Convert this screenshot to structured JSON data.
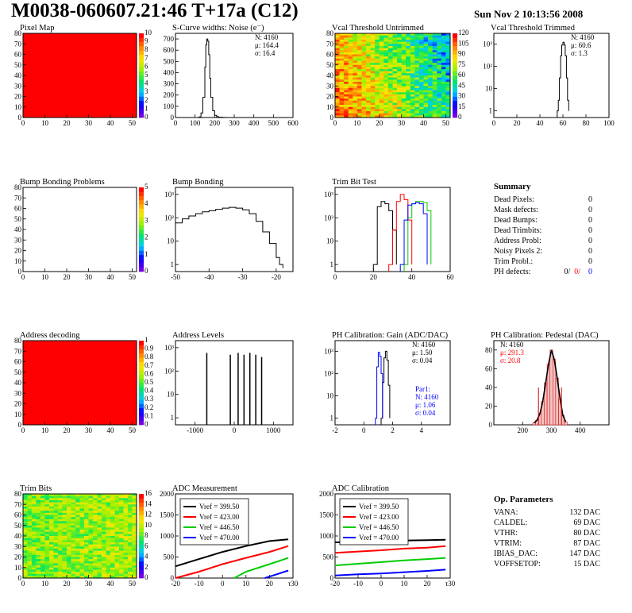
{
  "header": {
    "title": "M0038-060607.21:46 T+17a (C12)",
    "date": "Sun Nov  2 10:13:56 2008"
  },
  "colors": {
    "red_map": "#ff0000",
    "hist_line": "#000000",
    "trim_red": "#ff0000",
    "trim_green": "#00cc00",
    "trim_blue": "#0000ff"
  },
  "chart_data": [
    {
      "id": "pixel-map",
      "type": "heatmap",
      "title": "Pixel Map",
      "xlim": [
        0,
        52
      ],
      "ylim": [
        0,
        80
      ],
      "xticks": [
        0,
        10,
        20,
        30,
        40,
        50
      ],
      "yticks": [
        0,
        10,
        20,
        30,
        40,
        50,
        60,
        70,
        80
      ],
      "fill": "uniform",
      "value": 10,
      "zlim": [
        0,
        10
      ],
      "zticks": [
        0,
        1,
        2,
        3,
        4,
        5,
        6,
        7,
        8,
        9,
        10
      ]
    },
    {
      "id": "scurve-noise",
      "type": "line",
      "title": "S-Curve widths: Noise (e⁻)",
      "xlim": [
        0,
        600
      ],
      "ylim": [
        0,
        750
      ],
      "xticks": [
        0,
        100,
        200,
        300,
        400,
        500,
        600
      ],
      "yticks": [
        0,
        100,
        200,
        300,
        400,
        500,
        600,
        700
      ],
      "x": [
        100,
        120,
        130,
        140,
        150,
        155,
        160,
        165,
        170,
        175,
        180,
        190,
        200,
        210,
        220,
        240,
        260
      ],
      "y": [
        0,
        5,
        40,
        180,
        450,
        650,
        700,
        680,
        560,
        350,
        180,
        60,
        20,
        8,
        3,
        1,
        0
      ],
      "stats": {
        "N": "N: 4160",
        "mean": "μ: 164.4",
        "sigma": "σ: 16.4"
      }
    },
    {
      "id": "vcal-untrimmed",
      "type": "heatmap",
      "title": "Vcal Threshold Untrimmed",
      "xlim": [
        0,
        52
      ],
      "ylim": [
        0,
        80
      ],
      "xticks": [
        0,
        10,
        20,
        30,
        40,
        50
      ],
      "yticks": [
        0,
        10,
        20,
        30,
        40,
        50,
        60,
        70,
        80
      ],
      "fill": "gradient",
      "zticks": [
        0,
        15,
        30,
        45,
        60,
        75,
        90,
        105,
        120
      ]
    },
    {
      "id": "vcal-trimmed",
      "type": "line",
      "title": "Vcal Threshold Trimmed",
      "log_y": true,
      "xlim": [
        0,
        100
      ],
      "ylim": [
        0.5,
        3000
      ],
      "xticks": [
        0,
        20,
        40,
        60,
        80,
        100
      ],
      "ytick_labels": [
        "1",
        "10",
        "10²",
        "10³"
      ],
      "x": [
        55,
        56,
        57,
        58,
        59,
        60,
        61,
        62,
        63,
        64,
        65
      ],
      "y": [
        1,
        3,
        30,
        300,
        900,
        1200,
        900,
        300,
        30,
        3,
        1
      ],
      "stats": {
        "N": "N: 4160",
        "mean": "μ: 60.6",
        "sigma": "σ:  1.3"
      }
    },
    {
      "id": "bump-problems",
      "type": "heatmap",
      "title": "Bump Bonding Problems",
      "xlim": [
        0,
        52
      ],
      "ylim": [
        0,
        80
      ],
      "xticks": [
        0,
        10,
        20,
        30,
        40,
        50
      ],
      "yticks": [
        0,
        10,
        20,
        30,
        40,
        50,
        60,
        70,
        80
      ],
      "fill": "empty",
      "zticks": [
        0,
        1,
        2,
        3,
        4,
        5
      ]
    },
    {
      "id": "bump-bonding",
      "type": "line",
      "title": "Bump Bonding",
      "log_y": true,
      "xlim": [
        -50,
        -15
      ],
      "ylim": [
        0.5,
        2000
      ],
      "xticks": [
        -50,
        -40,
        -30,
        -20
      ],
      "ytick_labels": [
        "1",
        "10",
        "10²",
        "10³"
      ],
      "x": [
        -50,
        -48,
        -46,
        -44,
        -42,
        -40,
        -38,
        -36,
        -34,
        -32,
        -30,
        -28,
        -26,
        -24,
        -22,
        -20,
        -19,
        -18
      ],
      "y": [
        60,
        90,
        120,
        150,
        180,
        200,
        230,
        260,
        280,
        260,
        220,
        150,
        70,
        25,
        8,
        2,
        1,
        0.7
      ],
      "stats": {}
    },
    {
      "id": "trim-bit-test",
      "type": "line",
      "title": "Trim Bit Test",
      "log_y": true,
      "xlim": [
        0,
        60
      ],
      "ylim": [
        0.5,
        2000
      ],
      "xticks": [
        0,
        20,
        40,
        60
      ],
      "ytick_labels": [
        "1",
        "10",
        "10²",
        "10³"
      ],
      "series": [
        {
          "color": "#000000",
          "x": [
            20,
            22,
            24,
            26,
            28,
            30,
            32
          ],
          "y": [
            1,
            300,
            500,
            400,
            200,
            30,
            1
          ]
        },
        {
          "color": "#ff0000",
          "x": [
            28,
            30,
            32,
            34,
            36,
            38,
            40
          ],
          "y": [
            1,
            30,
            500,
            1000,
            600,
            80,
            1
          ]
        },
        {
          "color": "#00cc00",
          "x": [
            36,
            38,
            40,
            42,
            44,
            46,
            48,
            50
          ],
          "y": [
            1,
            100,
            400,
            500,
            500,
            450,
            200,
            1
          ]
        },
        {
          "color": "#0000ff",
          "x": [
            34,
            36,
            38,
            40,
            42,
            44,
            46,
            48
          ],
          "y": [
            1,
            80,
            350,
            400,
            450,
            400,
            150,
            1
          ]
        }
      ],
      "stats": {}
    },
    {
      "id": "address-decoding",
      "type": "heatmap",
      "title": "Address decoding",
      "xlim": [
        0,
        52
      ],
      "ylim": [
        0,
        80
      ],
      "xticks": [
        0,
        10,
        20,
        30,
        40,
        50
      ],
      "yticks": [
        0,
        10,
        20,
        30,
        40,
        50,
        60,
        70,
        80
      ],
      "fill": "uniform",
      "value": 1,
      "zlim": [
        0,
        1
      ],
      "zticks": [
        "0",
        "0.1",
        "0.2",
        "0.3",
        "0.4",
        "0.5",
        "0.6",
        "0.7",
        "0.8",
        "0.9",
        "1"
      ]
    },
    {
      "id": "address-levels",
      "type": "line",
      "title": "Address Levels",
      "log_y": true,
      "xlim": [
        -1500,
        1500
      ],
      "ylim": [
        0.5,
        2000
      ],
      "xticks": [
        -1000,
        0,
        1000
      ],
      "ytick_labels": [
        "1",
        "10",
        "10²",
        "10³"
      ],
      "spikes": [
        {
          "x": -700,
          "y": 600
        },
        {
          "x": -100,
          "y": 500
        },
        {
          "x": 100,
          "y": 600
        },
        {
          "x": 250,
          "y": 500
        },
        {
          "x": 400,
          "y": 600
        },
        {
          "x": 550,
          "y": 500
        },
        {
          "x": 700,
          "y": 400
        }
      ],
      "stats": {}
    },
    {
      "id": "ph-gain",
      "type": "line",
      "title": "PH Calibration: Gain (ADC/DAC)",
      "log_y": true,
      "xlim": [
        -2,
        6
      ],
      "ylim": [
        0.5,
        3000
      ],
      "xticks": [
        -2,
        0,
        2,
        4
      ],
      "ytick_labels": [
        "1",
        "10",
        "10²",
        "10³"
      ],
      "series": [
        {
          "color": "#000000",
          "x": [
            1.2,
            1.3,
            1.4,
            1.5,
            1.6,
            1.7,
            1.8
          ],
          "y": [
            1,
            40,
            500,
            1000,
            400,
            30,
            1
          ]
        },
        {
          "color": "#0000ff",
          "x": [
            0.8,
            0.9,
            1.0,
            1.1,
            1.2,
            1.3
          ],
          "y": [
            1,
            200,
            900,
            600,
            100,
            1
          ]
        }
      ],
      "stats": {
        "N": "N: 4160",
        "mean": "μ: 1.50",
        "sigma": "σ: 0.04"
      },
      "stats2": {
        "label": "Par1:",
        "N": "N: 4160",
        "mean": "μ: 1.06",
        "sigma": "σ: 0.04"
      }
    },
    {
      "id": "ph-pedestal",
      "type": "bar",
      "title": "PH Calibration: Pedestal (DAC)",
      "xlim": [
        100,
        500
      ],
      "ylim": [
        0,
        90
      ],
      "xticks": [
        200,
        300,
        400
      ],
      "yticks": [
        0,
        20,
        40,
        60,
        80
      ],
      "x": [
        240,
        250,
        260,
        270,
        280,
        290,
        300,
        310,
        320,
        330,
        340,
        350
      ],
      "y": [
        2,
        5,
        12,
        25,
        45,
        65,
        80,
        70,
        50,
        28,
        10,
        3
      ],
      "stats": {
        "N": "N: 4160",
        "mean": "μ: 291.3",
        "sigma": "σ: 20.8"
      }
    },
    {
      "id": "trim-bits",
      "type": "heatmap",
      "title": "Trim Bits",
      "xlim": [
        0,
        52
      ],
      "ylim": [
        0,
        80
      ],
      "xticks": [
        0,
        10,
        20,
        30,
        40,
        50
      ],
      "yticks": [
        0,
        10,
        20,
        30,
        40,
        50,
        60,
        70,
        80
      ],
      "fill": "gradient-trim",
      "zticks": [
        0,
        2,
        4,
        6,
        8,
        10,
        12,
        14,
        16
      ]
    },
    {
      "id": "adc-measurement",
      "type": "line",
      "title": "ADC Measurement",
      "xlim": [
        -20,
        30
      ],
      "ylim": [
        0,
        2000
      ],
      "xticks": [
        -20,
        -10,
        0,
        10,
        20,
        30
      ],
      "yticks": [
        0,
        500,
        1000,
        1500,
        2000
      ],
      "x_last_label": "τ30",
      "series": [
        {
          "name": "Vref = 399.50",
          "color": "#000000",
          "x": [
            -20,
            -10,
            0,
            10,
            20,
            28
          ],
          "y": [
            280,
            450,
            620,
            760,
            880,
            920
          ]
        },
        {
          "name": "Vref = 423.00",
          "color": "#ff0000",
          "x": [
            -20,
            -10,
            0,
            10,
            20,
            28
          ],
          "y": [
            0,
            150,
            330,
            480,
            620,
            760
          ]
        },
        {
          "name": "Vref = 446.50",
          "color": "#00cc00",
          "x": [
            5,
            10,
            20,
            28
          ],
          "y": [
            0,
            150,
            330,
            480
          ]
        },
        {
          "name": "Vref = 470.00",
          "color": "#0000ff",
          "x": [
            18,
            22,
            28
          ],
          "y": [
            0,
            70,
            180
          ]
        }
      ]
    },
    {
      "id": "adc-calibration",
      "type": "line",
      "title": "ADC Calibration",
      "xlim": [
        -20,
        30
      ],
      "ylim": [
        0,
        2000
      ],
      "xticks": [
        -20,
        -10,
        0,
        10,
        20,
        30
      ],
      "yticks": [
        0,
        500,
        1000,
        1500,
        2000
      ],
      "x_last_label": "τ30",
      "series": [
        {
          "name": "Vref = 399.50",
          "color": "#000000",
          "x": [
            -20,
            -10,
            0,
            10,
            20,
            28
          ],
          "y": [
            850,
            860,
            880,
            890,
            900,
            910
          ]
        },
        {
          "name": "Vref = 423.00",
          "color": "#ff0000",
          "x": [
            -20,
            -10,
            0,
            10,
            20,
            28
          ],
          "y": [
            600,
            630,
            660,
            700,
            720,
            760
          ]
        },
        {
          "name": "Vref = 446.50",
          "color": "#00cc00",
          "x": [
            -20,
            -10,
            0,
            10,
            20,
            28
          ],
          "y": [
            300,
            340,
            380,
            420,
            450,
            480
          ]
        },
        {
          "name": "Vref = 470.00",
          "color": "#0000ff",
          "x": [
            -20,
            -10,
            0,
            10,
            20,
            28
          ],
          "y": [
            60,
            90,
            110,
            140,
            170,
            200
          ]
        }
      ]
    }
  ],
  "summary": {
    "title": "Summary",
    "rows": [
      {
        "label": "Dead Pixels:",
        "value": "0"
      },
      {
        "label": "Mask defects:",
        "value": "0"
      },
      {
        "label": "Dead Bumps:",
        "value": "0"
      },
      {
        "label": "Dead Trimbits:",
        "value": "0"
      },
      {
        "label": "Address Probl:",
        "value": "0"
      },
      {
        "label": "Noisy Pixels 2:",
        "value": "0"
      },
      {
        "label": "Trim Probl.:",
        "value": "0"
      }
    ],
    "ph_label": "PH defects:",
    "ph_values": [
      "0/",
      "0/",
      "0"
    ]
  },
  "op_params": {
    "title": "Op. Parameters",
    "rows": [
      {
        "label": "VANA:",
        "value": "132 DAC"
      },
      {
        "label": "CALDEL:",
        "value": "69 DAC"
      },
      {
        "label": "VTHR:",
        "value": "80 DAC"
      },
      {
        "label": "VTRIM:",
        "value": "87 DAC"
      },
      {
        "label": "IBIAS_DAC:",
        "value": "147 DAC"
      },
      {
        "label": "VOFFSETOP:",
        "value": "15 DAC"
      }
    ]
  }
}
